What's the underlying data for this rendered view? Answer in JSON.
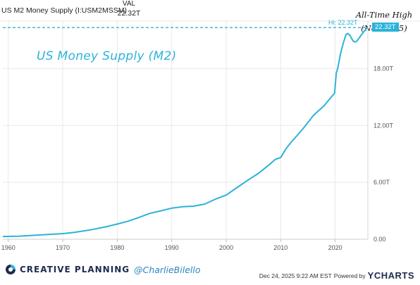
{
  "header": {
    "series_name": "US M2 Money Supply (I:USM2MSSM)",
    "val_label": "VAL",
    "val_value": "22.32T"
  },
  "annotation": {
    "line1": "All-Time High",
    "line2": "(Nov 2025)"
  },
  "footer": {
    "brand": "CREATIVE PLANNING",
    "handle": "@CharlieBilello",
    "date": "Dec 24, 2025 9:22 AM EST",
    "powered": "Powered by",
    "ycharts": "YCHARTS"
  },
  "colors": {
    "series": "#2bb3d9",
    "grid": "#e9e9e9",
    "axis_text": "#555555"
  },
  "chart_data": {
    "type": "line",
    "title": "US Money Supply (M2)",
    "xlabel": "",
    "ylabel": "",
    "xlim": [
      1959,
      2026
    ],
    "ylim": [
      0,
      23
    ],
    "x_ticks": [
      1960,
      1970,
      1980,
      1990,
      2000,
      2010,
      2020
    ],
    "x_tick_labels": [
      "1960",
      "1970",
      "1980",
      "1990",
      "2000",
      "2010",
      "2020"
    ],
    "y_ticks": [
      0,
      6,
      12,
      18
    ],
    "y_tick_labels": [
      "0.00",
      "6.00T",
      "12.00T",
      "18.00T"
    ],
    "grid": true,
    "hi_label": "Hi: 22.32T",
    "last_value_label": "22.32T",
    "series": [
      {
        "name": "US M2 Money Supply",
        "x": [
          1959,
          1962,
          1965,
          1968,
          1970,
          1972,
          1975,
          1978,
          1980,
          1982,
          1984,
          1986,
          1988,
          1990,
          1992,
          1994,
          1996,
          1998,
          2000,
          2002,
          2004,
          2006,
          2008,
          2009,
          2010,
          2011,
          2012,
          2014,
          2016,
          2018,
          2019,
          2019.9,
          2020.2,
          2020.5,
          2021,
          2021.5,
          2022,
          2022.3,
          2022.7,
          2023,
          2023.3,
          2023.7,
          2024,
          2024.5,
          2025,
          2025.9
        ],
        "y": [
          0.29,
          0.33,
          0.42,
          0.53,
          0.59,
          0.71,
          0.98,
          1.33,
          1.6,
          1.91,
          2.31,
          2.73,
          3.0,
          3.28,
          3.43,
          3.49,
          3.7,
          4.22,
          4.66,
          5.45,
          6.24,
          6.98,
          7.91,
          8.42,
          8.62,
          9.56,
          10.28,
          11.58,
          13.05,
          14.1,
          14.8,
          15.4,
          17.5,
          18.1,
          19.6,
          20.7,
          21.6,
          21.7,
          21.5,
          21.2,
          20.9,
          20.8,
          20.9,
          21.3,
          21.7,
          22.32
        ]
      }
    ]
  }
}
